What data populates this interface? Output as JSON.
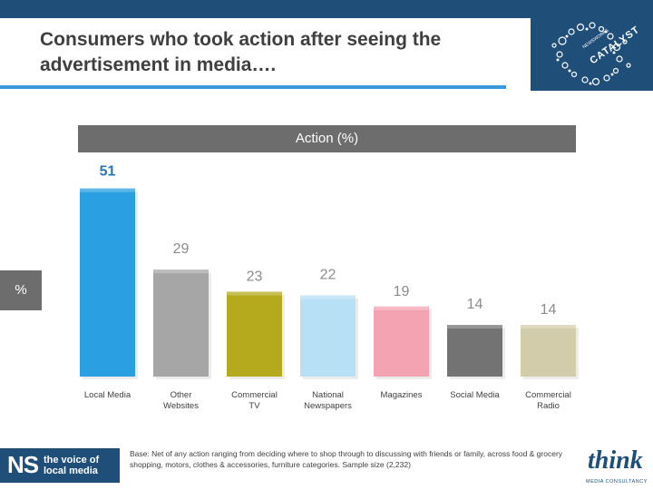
{
  "title": "Consumers who took action after seeing the advertisement in media….",
  "chart_header": "Action (%)",
  "y_axis_box": "%",
  "footnote": "Base: Net of any action ranging from deciding where to shop through to discussing with friends or family, across food & grocery shopping, motors, clothes & accessories, furniture categories. Sample size (2,232)",
  "logos": {
    "catalyst": "CATALYST",
    "catalyst_sub": "NEWSWORKS",
    "ns_mark": "NS",
    "ns_text_1": "the voice of",
    "ns_text_2": "local media",
    "think_word": "think",
    "think_sub": "MEDIA CONSULTANCY"
  },
  "colors": {
    "header_band": "#1f4e79",
    "title_rule": "#3a9ad9",
    "label_box": "#6d6d6d"
  },
  "chart_data": {
    "type": "bar",
    "title": "Action (%)",
    "ylabel": "%",
    "xlabel": "",
    "ylim": [
      0,
      55
    ],
    "grid": false,
    "categories": [
      "Local Media",
      "Other Websites",
      "Commercial TV",
      "National Newspapers",
      "Magazines",
      "Social Media",
      "Commercial Radio"
    ],
    "category_lines": [
      [
        "Local Media"
      ],
      [
        "Other",
        "Websites"
      ],
      [
        "Commercial",
        "TV"
      ],
      [
        "National",
        "Newspapers"
      ],
      [
        "Magazines"
      ],
      [
        "Social Media"
      ],
      [
        "Commercial",
        "Radio"
      ]
    ],
    "values": [
      51,
      29,
      23,
      22,
      19,
      14,
      14
    ],
    "bar_colors": [
      "#2a9fe2",
      "#a6a6a6",
      "#b5a91d",
      "#b7e0f5",
      "#f4a3b2",
      "#737373",
      "#d3ccaa"
    ],
    "value_colors": [
      "#2a74b5",
      "#8c8c8c",
      "#8c8c8c",
      "#8c8c8c",
      "#8c8c8c",
      "#8c8c8c",
      "#8c8c8c"
    ]
  }
}
